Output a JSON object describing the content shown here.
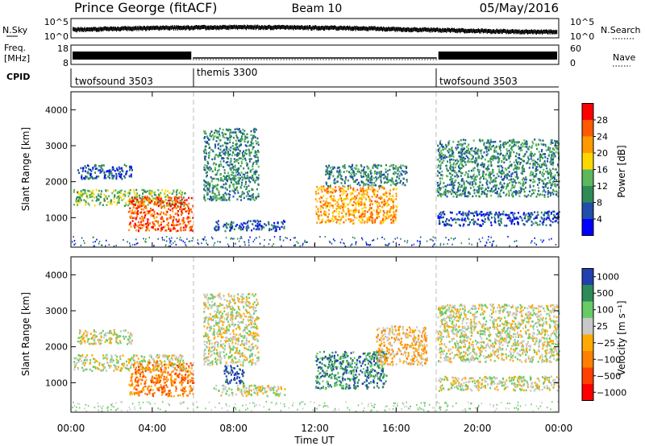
{
  "header": {
    "station": "Prince George (fitACF)",
    "beam": "Beam 10",
    "date": "05/May/2016"
  },
  "noise_panel": {
    "left_label": "N.Sky",
    "right_label": "N.Search",
    "left_ticks": [
      "10^5",
      "10^0"
    ],
    "right_ticks": [
      "10^5",
      "10^0"
    ]
  },
  "freq_panel": {
    "left_label_1": "Freq.",
    "left_label_2": "[MHz]",
    "left_ticks": [
      "18",
      "8"
    ],
    "right_label": "Nave",
    "right_ticks": [
      "60",
      "0"
    ]
  },
  "cpid": {
    "label": "CPID",
    "segments": [
      {
        "name": "twofsound 3503",
        "start_hour": 0,
        "end_hour": 6
      },
      {
        "name": "themis 3300",
        "start_hour": 6,
        "end_hour": 18
      },
      {
        "name": "twofsound 3503",
        "start_hour": 18,
        "end_hour": 24
      }
    ]
  },
  "colors": {
    "power": [
      "#0000ff",
      "#1f4fa8",
      "#2e8b57",
      "#5cb85c",
      "#ffd700",
      "#ff9900",
      "#ff5a00",
      "#ff0000"
    ],
    "velocity": [
      "#2040b0",
      "#2e8b57",
      "#66cc66",
      "#c8c8c8",
      "#ffaa00",
      "#ff8000",
      "#ff4000",
      "#ff0000"
    ]
  },
  "chart_data": [
    {
      "type": "heatmap",
      "title": "Power",
      "xlabel": "",
      "ylabel": "Slant Range [km]",
      "xlim": [
        0,
        24
      ],
      "ylim": [
        180,
        4500
      ],
      "x_ticks": [
        "00:00",
        "04:00",
        "08:00",
        "12:00",
        "16:00",
        "20:00",
        "00:00"
      ],
      "y_ticks": [
        1000,
        2000,
        3000,
        4000
      ],
      "colorbar": {
        "label": "Power [dB]",
        "ticks": [
          "4",
          "8",
          "12",
          "16",
          "20",
          "24",
          "28"
        ]
      },
      "regions": [
        {
          "t": [
            0.1,
            5.6
          ],
          "r": [
            1350,
            1800
          ],
          "level": 3
        },
        {
          "t": [
            2.8,
            6.0
          ],
          "r": [
            650,
            1600
          ],
          "level": 6
        },
        {
          "t": [
            6.5,
            9.2
          ],
          "r": [
            1500,
            3500
          ],
          "level": 2
        },
        {
          "t": [
            7.0,
            10.5
          ],
          "r": [
            650,
            950
          ],
          "level": 1
        },
        {
          "t": [
            12.0,
            16.0
          ],
          "r": [
            850,
            1900
          ],
          "level": 5
        },
        {
          "t": [
            12.5,
            16.5
          ],
          "r": [
            1900,
            2500
          ],
          "level": 2
        },
        {
          "t": [
            18.0,
            24.0
          ],
          "r": [
            1600,
            3200
          ],
          "level": 2
        },
        {
          "t": [
            18.0,
            24.0
          ],
          "r": [
            800,
            1200
          ],
          "level": 1
        },
        {
          "t": [
            0.3,
            3.0
          ],
          "r": [
            2100,
            2500
          ],
          "level": 1
        }
      ]
    },
    {
      "type": "heatmap",
      "title": "Velocity",
      "xlabel": "Time UT",
      "ylabel": "Slant Range [km]",
      "xlim": [
        0,
        24
      ],
      "ylim": [
        180,
        4500
      ],
      "x_ticks": [
        "00:00",
        "04:00",
        "08:00",
        "12:00",
        "16:00",
        "20:00",
        "00:00"
      ],
      "y_ticks": [
        1000,
        2000,
        3000,
        4000
      ],
      "colorbar": {
        "label": "Velocity [m s⁻¹]",
        "ticks": [
          "1000",
          "500",
          "100",
          "25",
          "−25",
          "−100",
          "−500",
          "−1000"
        ]
      },
      "regions": [
        {
          "t": [
            0.1,
            5.6
          ],
          "r": [
            1350,
            1800
          ],
          "level": 3
        },
        {
          "t": [
            2.8,
            6.0
          ],
          "r": [
            650,
            1600
          ],
          "level": 5
        },
        {
          "t": [
            6.5,
            9.2
          ],
          "r": [
            1500,
            3500
          ],
          "level": 3
        },
        {
          "t": [
            7.0,
            10.5
          ],
          "r": [
            650,
            950
          ],
          "level": 3
        },
        {
          "t": [
            12.0,
            15.5
          ],
          "r": [
            850,
            1900
          ],
          "level": 1
        },
        {
          "t": [
            15.0,
            17.5
          ],
          "r": [
            1500,
            2600
          ],
          "level": 4
        },
        {
          "t": [
            18.0,
            24.0
          ],
          "r": [
            1600,
            3200
          ],
          "level": 3
        },
        {
          "t": [
            18.0,
            24.0
          ],
          "r": [
            800,
            1200
          ],
          "level": 3
        },
        {
          "t": [
            7.5,
            8.5
          ],
          "r": [
            1000,
            1500
          ],
          "level": 0
        },
        {
          "t": [
            0.3,
            3.0
          ],
          "r": [
            2100,
            2500
          ],
          "level": 3
        }
      ]
    }
  ]
}
